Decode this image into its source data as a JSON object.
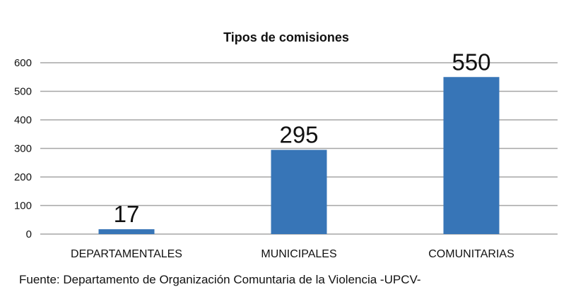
{
  "chart_data": {
    "type": "bar",
    "title": "Tipos de comisiones",
    "categories": [
      "DEPARTAMENTALES",
      "MUNICIPALES",
      "COMUNITARIAS"
    ],
    "values": [
      17,
      295,
      550
    ],
    "value_labels": [
      "17",
      "295",
      "550"
    ],
    "y_ticks": [
      "0",
      "100",
      "200",
      "300",
      "400",
      "500",
      "600"
    ],
    "ylim": [
      0,
      600
    ],
    "grid": true,
    "legend": "none",
    "bar_color": "#3775b7",
    "grid_color": "#a6a6a6"
  },
  "source": "Fuente: Departamento de Organización Comuntaria de la Violencia -UPCV-"
}
